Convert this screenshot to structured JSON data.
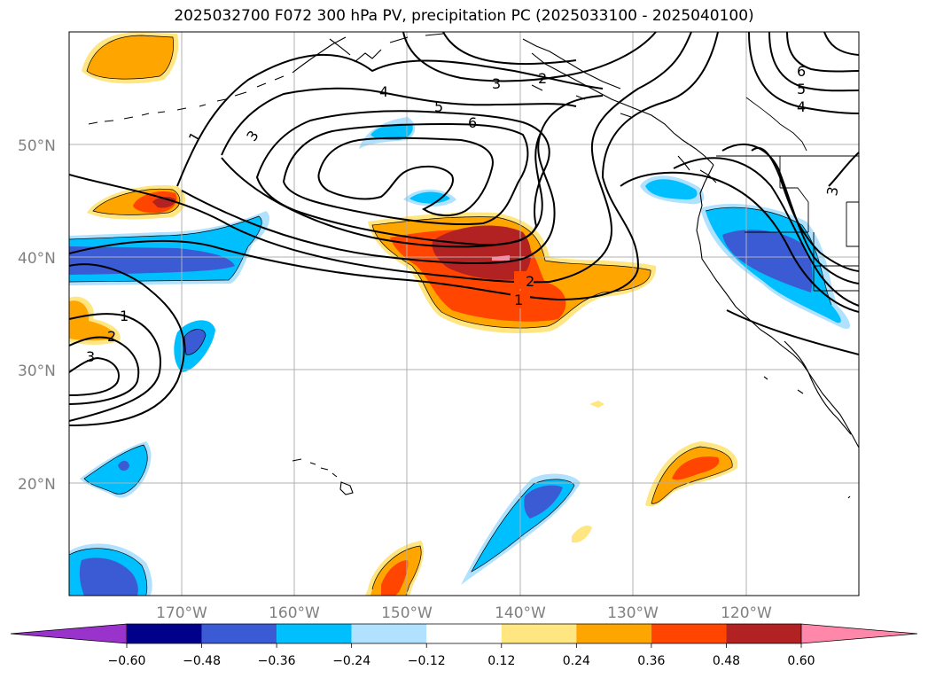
{
  "title": "2025032700 F072 300 hPa PV, precipitation PC (2025033100 - 2025040100)",
  "latitudes": [
    "50°N",
    "40°N",
    "30°N",
    "20°N"
  ],
  "longitudes": [
    "170°W",
    "160°W",
    "150°W",
    "140°W",
    "130°W",
    "120°W"
  ],
  "contour_labels": [
    "1",
    "2",
    "3",
    "4",
    "5",
    "6"
  ],
  "colorbar": {
    "ticks": [
      "−0.60",
      "−0.48",
      "−0.36",
      "−0.24",
      "−0.12",
      "0.12",
      "0.24",
      "0.36",
      "0.48",
      "0.60"
    ],
    "colors": [
      "#9933cc",
      "#00008b",
      "#3a5bd3",
      "#00bfff",
      "#b0e2ff",
      "#ffffff",
      "#ffe680",
      "#ffa500",
      "#ff4500",
      "#b22222",
      "#ff88aa"
    ]
  },
  "colors": {
    "pos_weak": "#ffe680",
    "pos_mid": "#ffa500",
    "pos_strong": "#ff4500",
    "pos_max": "#b22222",
    "neg_weak": "#b0e2ff",
    "neg_mid": "#00bfff",
    "neg_strong": "#3a5bd3"
  }
}
